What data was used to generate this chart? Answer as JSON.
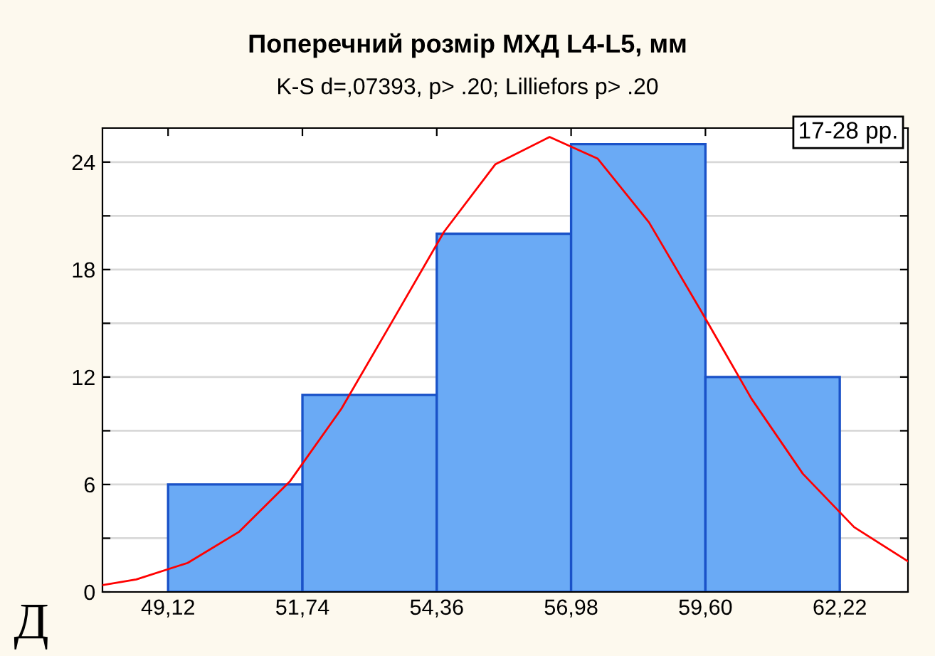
{
  "chart_data": {
    "type": "histogram",
    "title": "Поперечний розмір МХД L4-L5, мм",
    "subtitle": "K-S d=,07393, p> .20; Lilliefors p> .20",
    "annotations": [
      "17-28 рр.",
      "Д"
    ],
    "series": [
      {
        "bins": [
          49.12,
          51.74,
          54.36,
          56.98,
          59.6,
          62.22
        ],
        "values": [
          6,
          11,
          20,
          25,
          12
        ],
        "color": "#6aaaf5"
      },
      {
        "type": "line",
        "color": "#ff0000",
        "x": [
          47.84,
          48.5,
          49.5,
          50.5,
          51.5,
          52.5,
          53.5,
          54.5,
          55.5,
          56.56,
          57.5,
          58.5,
          59.5,
          60.5,
          61.5,
          62.5,
          63.55
        ],
        "values": [
          0.38,
          0.7,
          1.62,
          3.35,
          6.19,
          10.23,
          15.15,
          20.1,
          23.87,
          25.4,
          24.19,
          20.63,
          15.76,
          10.78,
          6.6,
          3.62,
          1.71
        ]
      }
    ],
    "xlim": [
      47.84,
      63.55
    ],
    "ylim": [
      0,
      25.9
    ],
    "xticks": [
      {
        "value": 49.12,
        "label": "49,12"
      },
      {
        "value": 51.74,
        "label": "51,74"
      },
      {
        "value": 54.36,
        "label": "54,36"
      },
      {
        "value": 56.98,
        "label": "56,98"
      },
      {
        "value": 59.6,
        "label": "59,60"
      },
      {
        "value": 62.22,
        "label": "62,22"
      }
    ],
    "yticks": [
      0,
      {
        "value": 3,
        "label": null
      },
      6,
      {
        "value": 9,
        "label": null
      },
      12,
      {
        "value": 15,
        "label": null
      },
      18,
      {
        "value": 21,
        "label": null
      },
      24
    ],
    "grid": "y"
  }
}
